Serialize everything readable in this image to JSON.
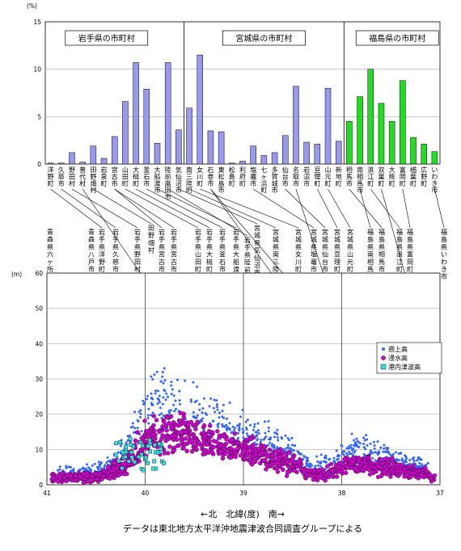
{
  "chart_data": [
    {
      "type": "bar",
      "ylabel": "(%)",
      "ylim": [
        0,
        15
      ],
      "yticks": [
        0,
        5,
        10,
        15
      ],
      "groups": [
        {
          "label": "岩手県の市町村",
          "from": 0,
          "to": 12
        },
        {
          "label": "宮城県の市町村",
          "from": 13,
          "to": 27
        },
        {
          "label": "福島県の市町村",
          "from": 28,
          "to": 37
        }
      ],
      "bar_colors": [
        "#9999ee",
        "#9999ee",
        "#22dd22"
      ],
      "categories": [
        "洋野町",
        "久慈市",
        "野田村",
        "普代村",
        "田野畑村",
        "岩泉町",
        "宮古市",
        "山田町",
        "大槌町",
        "釜石市",
        "大船渡市",
        "陸前高田市",
        "気仙沼市",
        "南三陸町",
        "女川町",
        "石巻市",
        "東松島市",
        "松島町",
        "利府町",
        "塩竈市",
        "七ヶ浜町",
        "多賀城市",
        "仙台市",
        "名取市",
        "岩沼市",
        "亘理町",
        "山元町",
        "新地町",
        "相馬市",
        "南相馬市",
        "浪江町",
        "双葉町",
        "大熊町",
        "富岡町",
        "楢葉町",
        "広野町",
        "いわき市"
      ],
      "values": [
        0.1,
        0.1,
        1.2,
        0.2,
        1.9,
        0.6,
        2.9,
        6.6,
        10.7,
        7.9,
        2.2,
        10.7,
        3.6,
        5.9,
        11.5,
        3.5,
        3.4,
        0.1,
        0.3,
        1.9,
        0.9,
        1.2,
        3.0,
        8.2,
        2.3,
        2.1,
        8.0,
        2.4,
        4.5,
        7.1,
        10.0,
        6.4,
        4.5,
        8.8,
        2.8,
        2.1,
        1.3
      ]
    },
    {
      "type": "scatter",
      "ylabel": "(m)",
      "ylim": [
        0,
        60
      ],
      "yticks": [
        0,
        10,
        20,
        30,
        40,
        50,
        60
      ],
      "xlim": [
        41,
        37
      ],
      "xticks": [
        "41",
        "40",
        "39",
        "38",
        "37"
      ],
      "xlabel": "←北　北緯(度)　南→",
      "legend": [
        "遡上高",
        "浸水高",
        "港内津波高"
      ],
      "legend_colors": [
        "#3366ff",
        "#cc00cc",
        "#33dddd"
      ]
    }
  ],
  "place_labels": [
    "青森県六ヶ所村",
    "青森県八戸市",
    "岩手県洋野町",
    "岩手県久慈市",
    "岩手県野田村",
    "田野畑村",
    "岩手県普代村",
    "岩手県宮古市",
    "岩手県宮古市田老町",
    "岩手県山田町",
    "岩手県大槌町",
    "岩手県釜石市",
    "岩手県大船渡市",
    "宮城県気仙沼市",
    "岩手県陸前高田市",
    "宮城県南三陸町志津川",
    "宮城県女川町",
    "宮城県石巻市雄勝町",
    "宮城県石巻市本庁地区",
    "宮城県塩竈市",
    "宮城県仙台市若林区",
    "宮城県名取市閖上",
    "宮城県山元町",
    "宮城県亘理町",
    "福島県南相馬市",
    "福島県相馬市",
    "福島県浪江町",
    "福島県富岡町",
    "福島県双葉町",
    "福島県いわき市"
  ],
  "footer": "データは東北地方太平洋沖地震津波合同調査グループによる"
}
